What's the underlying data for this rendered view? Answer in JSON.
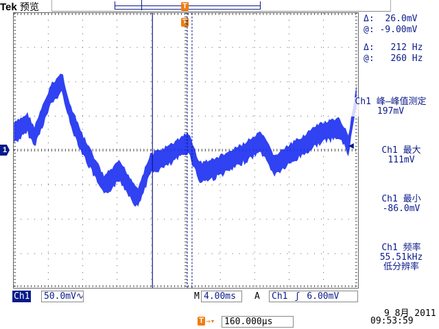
{
  "brand": {
    "logo": "Tek",
    "mode": "预览"
  },
  "trigger_badge": "T",
  "cursor_readouts": {
    "delta_v": "26.0mV",
    "at_v": "-9.00mV",
    "delta_f": "212 Hz",
    "at_f": "260 Hz",
    "delta_symbol": "Δ:",
    "at_symbol": "@:"
  },
  "channel_marker": "1",
  "measurements": [
    {
      "label": "Ch1 峰—峰值测定",
      "value": "197mV"
    },
    {
      "label": "Ch1 最大",
      "value": "111mV"
    },
    {
      "label": "Ch1 最小",
      "value": "-86.0mV"
    },
    {
      "label": "Ch1 频率",
      "value": "55.51kHz",
      "note": "低分辨率"
    }
  ],
  "status": {
    "channel": "Ch1",
    "volts_div": "50.0mV∿",
    "m_label": "M",
    "timebase": "4.00ms",
    "a_label": "A",
    "trig_source": "Ch1",
    "trig_slope": "ʃ",
    "trig_level": "6.00mV",
    "trig_offset": "160.000µs",
    "date": "9 8月 2011",
    "time": "09:53:59"
  },
  "colors": {
    "trace": "#1a2ef0",
    "text": "#0a1a8a",
    "trigger": "#f07c10"
  }
}
